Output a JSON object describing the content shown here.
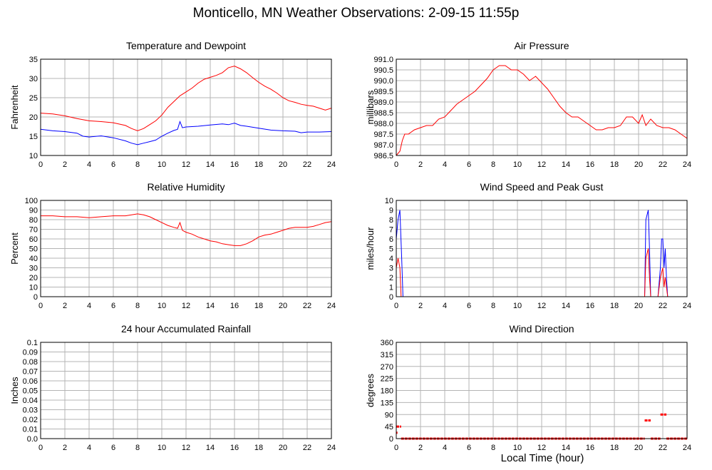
{
  "page": {
    "title": "Monticello, MN Weather Observations: 2-09-15 11:55p",
    "xlabel": "Local Time (hour)"
  },
  "colors": {
    "red": "#ff0000",
    "blue": "#0000ff",
    "grid": "#b4b4b4",
    "frame": "#000000"
  },
  "chart_data": [
    {
      "type": "line",
      "title": "Temperature and Dewpoint",
      "ylabel": "Fahrenheit",
      "xlim": [
        0,
        24
      ],
      "ylim": [
        10,
        35
      ],
      "xticks": [
        0,
        2,
        4,
        6,
        8,
        10,
        12,
        14,
        16,
        18,
        20,
        22,
        24
      ],
      "yticks": [
        10,
        15,
        20,
        25,
        30,
        35
      ],
      "ytick_labels": [
        "10",
        "15",
        "20",
        "25",
        "30",
        "35"
      ],
      "series": [
        {
          "color": "#ff0000",
          "x": [
            0,
            1,
            2,
            3,
            4,
            5,
            6,
            7,
            7.5,
            8,
            8.5,
            9,
            9.5,
            10,
            10.5,
            11,
            11.5,
            12,
            12.5,
            13,
            13.5,
            14,
            14.5,
            15,
            15.5,
            16,
            16.5,
            17,
            17.5,
            18,
            18.5,
            19,
            19.5,
            20,
            20.5,
            21,
            21.5,
            22,
            22.5,
            23,
            23.5,
            24
          ],
          "y": [
            21,
            20.8,
            20.3,
            19.6,
            19,
            18.8,
            18.5,
            17.8,
            17,
            16.4,
            17,
            18,
            19,
            20.5,
            22.5,
            24,
            25.5,
            26.5,
            27.5,
            28.8,
            29.8,
            30.3,
            30.8,
            31.5,
            32.8,
            33.2,
            32.5,
            31.5,
            30.2,
            29,
            28,
            27.2,
            26.2,
            25,
            24.2,
            23.8,
            23.3,
            23,
            22.8,
            22.3,
            21.8,
            22.3
          ]
        },
        {
          "color": "#0000ff",
          "x": [
            0,
            1,
            2,
            3,
            3.5,
            4,
            5,
            6,
            7,
            7.5,
            8,
            8.5,
            9,
            9.5,
            10,
            10.5,
            11,
            11.3,
            11.5,
            11.7,
            12,
            13,
            14,
            15,
            15.5,
            16,
            16.5,
            17,
            18,
            19,
            20,
            21,
            21.5,
            22,
            23,
            24
          ],
          "y": [
            16.8,
            16.4,
            16.2,
            15.8,
            15,
            14.8,
            15.1,
            14.6,
            13.8,
            13.2,
            12.8,
            13.2,
            13.6,
            14,
            15,
            15.8,
            16.5,
            16.8,
            18.8,
            17.2,
            17.4,
            17.6,
            17.9,
            18.2,
            18,
            18.4,
            17.8,
            17.6,
            17.1,
            16.6,
            16.4,
            16.3,
            15.9,
            16.1,
            16.1,
            16.2
          ]
        }
      ]
    },
    {
      "type": "line",
      "title": "Air Pressure",
      "ylabel": "millibars",
      "xlim": [
        0,
        24
      ],
      "ylim": [
        986.5,
        991.0
      ],
      "xticks": [
        0,
        2,
        4,
        6,
        8,
        10,
        12,
        14,
        16,
        18,
        20,
        22,
        24
      ],
      "yticks": [
        986.5,
        987.0,
        987.5,
        988.0,
        988.5,
        989.0,
        989.5,
        990.0,
        990.5,
        991.0
      ],
      "ytick_labels": [
        "986.5",
        "987.0",
        "987.5",
        "988.0",
        "988.5",
        "989.0",
        "989.5",
        "990.0",
        "990.5",
        "991.0"
      ],
      "series": [
        {
          "color": "#ff0000",
          "x": [
            0,
            0.3,
            0.5,
            0.7,
            1,
            1.5,
            2,
            2.5,
            3,
            3.5,
            4,
            4.5,
            5,
            5.5,
            6,
            6.5,
            7,
            7.5,
            8,
            8.5,
            9,
            9.5,
            10,
            10.5,
            11,
            11.5,
            12,
            12.5,
            13,
            13.5,
            14,
            14.5,
            15,
            15.5,
            16,
            16.5,
            17,
            17.5,
            18,
            18.5,
            19,
            19.5,
            20,
            20.3,
            20.6,
            21,
            21.5,
            22,
            22.5,
            23,
            23.5,
            24
          ],
          "y": [
            986.5,
            986.7,
            987.2,
            987.5,
            987.5,
            987.7,
            987.8,
            987.9,
            987.9,
            988.2,
            988.3,
            988.6,
            988.9,
            989.1,
            989.3,
            989.5,
            989.8,
            990.1,
            990.5,
            990.7,
            990.7,
            990.5,
            990.5,
            990.3,
            990.0,
            990.2,
            989.9,
            989.6,
            989.2,
            988.8,
            988.5,
            988.3,
            988.3,
            988.1,
            987.9,
            987.7,
            987.7,
            987.8,
            987.8,
            987.9,
            988.3,
            988.3,
            988.0,
            988.4,
            987.9,
            988.2,
            987.9,
            987.8,
            987.8,
            987.7,
            987.5,
            987.3
          ]
        }
      ]
    },
    {
      "type": "line",
      "title": "Relative Humidity",
      "ylabel": "Percent",
      "xlim": [
        0,
        24
      ],
      "ylim": [
        0,
        100
      ],
      "xticks": [
        0,
        2,
        4,
        6,
        8,
        10,
        12,
        14,
        16,
        18,
        20,
        22,
        24
      ],
      "yticks": [
        0,
        10,
        20,
        30,
        40,
        50,
        60,
        70,
        80,
        90,
        100
      ],
      "ytick_labels": [
        "0",
        "10",
        "20",
        "30",
        "40",
        "50",
        "60",
        "70",
        "80",
        "90",
        "100"
      ],
      "series": [
        {
          "color": "#ff0000",
          "x": [
            0,
            1,
            2,
            3,
            4,
            5,
            6,
            7,
            7.5,
            8,
            8.5,
            9,
            9.5,
            10,
            10.5,
            11,
            11.3,
            11.5,
            11.7,
            12,
            12.5,
            13,
            13.5,
            14,
            14.5,
            15,
            15.5,
            16,
            16.5,
            17,
            17.5,
            18,
            18.5,
            19,
            19.5,
            20,
            20.5,
            21,
            21.5,
            22,
            22.5,
            23,
            23.5,
            24
          ],
          "y": [
            84,
            84,
            83,
            83,
            82,
            83,
            84,
            84,
            85,
            86,
            85,
            83,
            80,
            77,
            74,
            72,
            71,
            77,
            69,
            67,
            65,
            62,
            60,
            58,
            57,
            55,
            54,
            53,
            53,
            55,
            58,
            62,
            64,
            65,
            67,
            69,
            71,
            72,
            72,
            72,
            73,
            75,
            77,
            78
          ]
        }
      ]
    },
    {
      "type": "line",
      "title": "Wind Speed and Peak Gust",
      "ylabel": "miles/hour",
      "xlim": [
        0,
        24
      ],
      "ylim": [
        0,
        10
      ],
      "xticks": [
        0,
        2,
        4,
        6,
        8,
        10,
        12,
        14,
        16,
        18,
        20,
        22,
        24
      ],
      "yticks": [
        0,
        1,
        2,
        3,
        4,
        5,
        6,
        7,
        8,
        9,
        10
      ],
      "ytick_labels": [
        "0",
        "1",
        "2",
        "3",
        "4",
        "5",
        "6",
        "7",
        "8",
        "9",
        "10"
      ],
      "series": [
        {
          "color": "#0000ff",
          "x": [
            0,
            0.15,
            0.3,
            0.45,
            0.55,
            20.5,
            20.6,
            20.8,
            20.9,
            21,
            21.6,
            21.8,
            21.9,
            22,
            22.1,
            22.2,
            22.3,
            22.4,
            24
          ],
          "y": [
            6,
            8,
            9,
            4,
            0,
            0,
            8,
            9,
            5,
            0,
            0,
            3,
            6,
            6,
            3,
            5,
            2,
            0,
            0
          ]
        },
        {
          "color": "#ff0000",
          "x": [
            0,
            0.15,
            0.3,
            0.4,
            0.5,
            20.5,
            20.6,
            20.8,
            20.9,
            21,
            21.6,
            21.8,
            22,
            22.1,
            22.2,
            22.4,
            24
          ],
          "y": [
            3,
            4,
            3,
            0,
            0,
            0,
            4,
            5,
            2,
            0,
            0,
            2,
            3,
            1,
            2,
            0,
            0
          ]
        }
      ]
    },
    {
      "type": "line",
      "title": "24 hour Accumulated Rainfall",
      "ylabel": "Inches",
      "xlim": [
        0,
        24
      ],
      "ylim": [
        0,
        0.1
      ],
      "xticks": [
        0,
        2,
        4,
        6,
        8,
        10,
        12,
        14,
        16,
        18,
        20,
        22,
        24
      ],
      "yticks": [
        0,
        0.01,
        0.02,
        0.03,
        0.04,
        0.05,
        0.06,
        0.07,
        0.08,
        0.09,
        0.1
      ],
      "ytick_labels": [
        "0.0",
        "0.01",
        "0.02",
        "0.03",
        "0.04",
        "0.05",
        "0.06",
        "0.07",
        "0.08",
        "0.09",
        "0.1"
      ],
      "series": [
        {
          "color": "#ff0000",
          "x": [
            0,
            24
          ],
          "y": [
            0,
            0
          ]
        }
      ]
    },
    {
      "type": "scatter",
      "title": "Wind Direction",
      "ylabel": "degrees",
      "xlim": [
        0,
        24
      ],
      "ylim": [
        0,
        360
      ],
      "xticks": [
        0,
        2,
        4,
        6,
        8,
        10,
        12,
        14,
        16,
        18,
        20,
        22,
        24
      ],
      "yticks": [
        0,
        45,
        90,
        135,
        180,
        225,
        270,
        315,
        360
      ],
      "ytick_labels": [
        "0",
        "45",
        "90",
        "135",
        "180",
        "225",
        "270",
        "315",
        "360"
      ],
      "segments": [
        {
          "color": "#ff0000",
          "x0": 0,
          "x1": 0.4,
          "y": 45
        },
        {
          "color": "#ff0000",
          "x0": 0,
          "x1": 0.1,
          "y": 22
        },
        {
          "color": "#ff0000",
          "x0": 0.4,
          "x1": 20.5,
          "y": 0
        },
        {
          "color": "#ff0000",
          "x0": 20.5,
          "x1": 21.0,
          "y": 68
        },
        {
          "color": "#ff0000",
          "x0": 21.0,
          "x1": 21.8,
          "y": 0
        },
        {
          "color": "#ff0000",
          "x0": 21.8,
          "x1": 22.3,
          "y": 90
        },
        {
          "color": "#ff0000",
          "x0": 22.3,
          "x1": 24,
          "y": 0
        }
      ]
    }
  ]
}
